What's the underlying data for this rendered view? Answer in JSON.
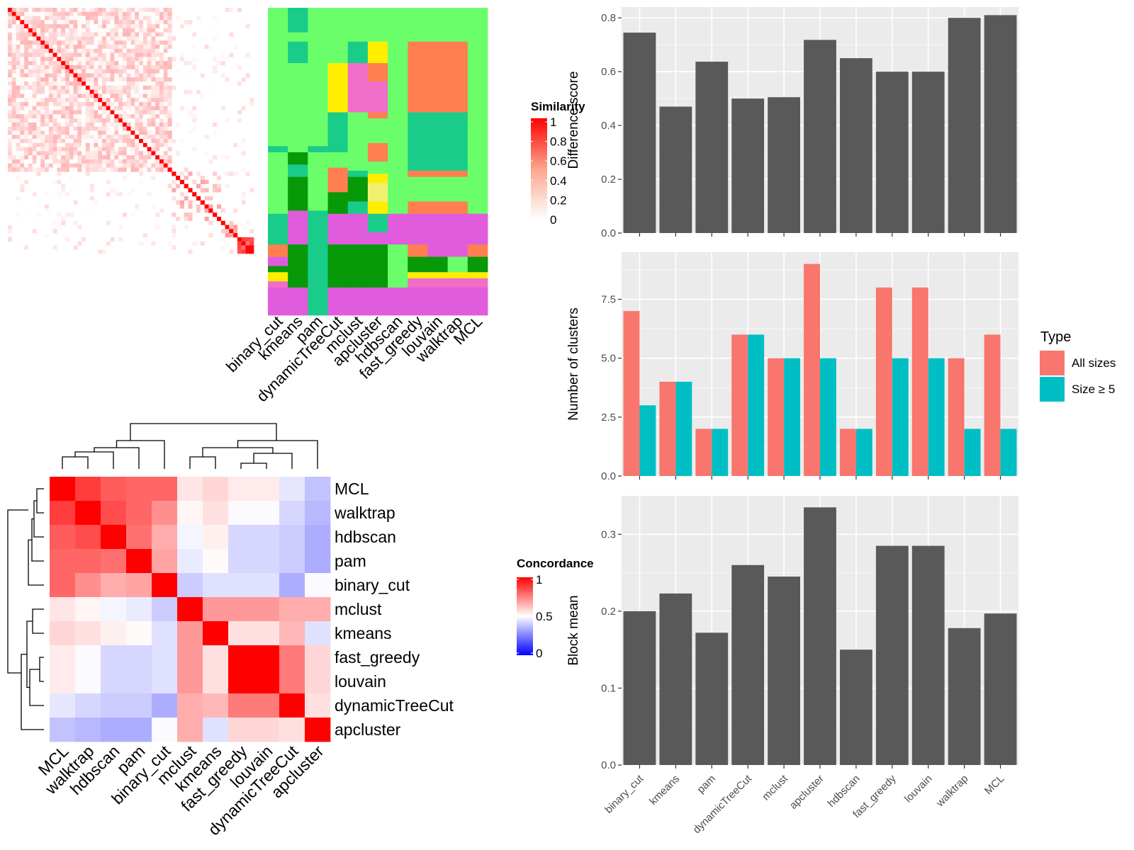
{
  "methods_order": [
    "binary_cut",
    "kmeans",
    "pam",
    "dynamicTreeCut",
    "mclust",
    "apcluster",
    "hdbscan",
    "fast_greedy",
    "louvain",
    "walktrap",
    "MCL"
  ],
  "cluster_matrix": {
    "labels": [
      "binary_cut",
      "kmeans",
      "pam",
      "dynamicTreeCut",
      "mclust",
      "apcluster",
      "hdbscan",
      "fast_greedy",
      "louvain",
      "walktrap",
      "MCL"
    ],
    "legend_title": "Similarity",
    "legend_ticks": [
      "1",
      "0.8",
      "0.6",
      "0.4",
      "0.2",
      "0"
    ],
    "palette": [
      "#6aff6a",
      "#19cc8a",
      "#079907",
      "#ff7f50",
      "#e05cdc",
      "#f06ec8",
      "#ffee00",
      "#f0f070"
    ]
  },
  "concordance": {
    "legend_title": "Concordance",
    "legend_ticks": [
      "1",
      "0.5",
      "0"
    ],
    "labels": [
      "MCL",
      "walktrap",
      "hdbscan",
      "pam",
      "binary_cut",
      "mclust",
      "kmeans",
      "fast_greedy",
      "louvain",
      "dynamicTreeCut",
      "apcluster"
    ],
    "matrix": [
      [
        1.0,
        0.88,
        0.82,
        0.8,
        0.8,
        0.55,
        0.58,
        0.54,
        0.54,
        0.45,
        0.38
      ],
      [
        0.88,
        1.0,
        0.85,
        0.8,
        0.72,
        0.52,
        0.56,
        0.49,
        0.49,
        0.42,
        0.36
      ],
      [
        0.82,
        0.85,
        1.0,
        0.78,
        0.66,
        0.48,
        0.53,
        0.42,
        0.42,
        0.4,
        0.34
      ],
      [
        0.8,
        0.8,
        0.78,
        1.0,
        0.68,
        0.46,
        0.51,
        0.42,
        0.42,
        0.4,
        0.34
      ],
      [
        0.8,
        0.72,
        0.66,
        0.68,
        1.0,
        0.4,
        0.44,
        0.44,
        0.44,
        0.34,
        0.49
      ],
      [
        0.55,
        0.52,
        0.48,
        0.46,
        0.4,
        1.0,
        0.7,
        0.7,
        0.7,
        0.66,
        0.66
      ],
      [
        0.58,
        0.56,
        0.53,
        0.51,
        0.44,
        0.7,
        1.0,
        0.56,
        0.56,
        0.64,
        0.44
      ],
      [
        0.54,
        0.49,
        0.42,
        0.42,
        0.44,
        0.7,
        0.56,
        1.0,
        1.0,
        0.76,
        0.58
      ],
      [
        0.54,
        0.49,
        0.42,
        0.42,
        0.44,
        0.7,
        0.56,
        1.0,
        1.0,
        0.76,
        0.58
      ],
      [
        0.45,
        0.42,
        0.4,
        0.4,
        0.34,
        0.66,
        0.64,
        0.76,
        0.76,
        1.0,
        0.56
      ],
      [
        0.38,
        0.36,
        0.34,
        0.34,
        0.49,
        0.66,
        0.44,
        0.58,
        0.58,
        0.56,
        1.0
      ]
    ]
  },
  "chart_data": [
    {
      "type": "bar",
      "ylabel": "Difference score",
      "categories": [
        "binary_cut",
        "kmeans",
        "pam",
        "dynamicTreeCut",
        "mclust",
        "apcluster",
        "hdbscan",
        "fast_greedy",
        "louvain",
        "walktrap",
        "MCL"
      ],
      "values": [
        0.745,
        0.47,
        0.637,
        0.5,
        0.505,
        0.718,
        0.65,
        0.6,
        0.6,
        0.8,
        0.81
      ],
      "ylim": [
        0,
        0.84
      ],
      "yticks": [
        "0.0",
        "0.2",
        "0.4",
        "0.6",
        "0.8"
      ],
      "grid": true
    },
    {
      "type": "bar",
      "ylabel": "Number of clusters",
      "categories": [
        "binary_cut",
        "kmeans",
        "pam",
        "dynamicTreeCut",
        "mclust",
        "apcluster",
        "hdbscan",
        "fast_greedy",
        "louvain",
        "walktrap",
        "MCL"
      ],
      "legend_title": "Type",
      "legend_position": "right",
      "series": [
        {
          "name": "All sizes",
          "color": "#f8766d",
          "values": [
            7,
            4,
            2,
            6,
            5,
            9,
            2,
            8,
            8,
            5,
            6
          ]
        },
        {
          "name": "Size ≥ 5",
          "color": "#00bfc4",
          "values": [
            3,
            4,
            2,
            6,
            5,
            5,
            2,
            5,
            5,
            2,
            2
          ]
        }
      ],
      "ylim": [
        0,
        9.5
      ],
      "yticks": [
        "0.0",
        "2.5",
        "5.0",
        "7.5"
      ],
      "grid": true
    },
    {
      "type": "bar",
      "ylabel": "Block mean",
      "categories": [
        "binary_cut",
        "kmeans",
        "pam",
        "dynamicTreeCut",
        "mclust",
        "apcluster",
        "hdbscan",
        "fast_greedy",
        "louvain",
        "walktrap",
        "MCL"
      ],
      "values": [
        0.2,
        0.223,
        0.172,
        0.26,
        0.245,
        0.335,
        0.15,
        0.285,
        0.285,
        0.178,
        0.197
      ],
      "ylim": [
        0,
        0.35
      ],
      "yticks": [
        "0.0",
        "0.1",
        "0.2",
        "0.3"
      ],
      "grid": true
    }
  ]
}
